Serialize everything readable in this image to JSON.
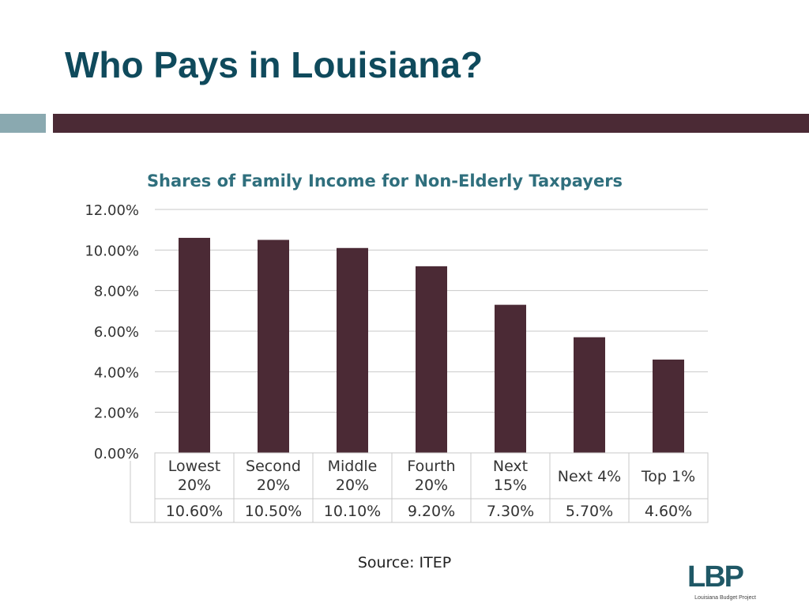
{
  "slide": {
    "title": "Who Pays in Louisiana?",
    "source": "Source: ITEP"
  },
  "logo": {
    "text": "LBP",
    "caption": "Louisiana Budget Project"
  },
  "colors": {
    "title": "#0f4a5c",
    "accent_light": "#8aa9b0",
    "accent_dark": "#4b2a35",
    "bar": "#4b2a35",
    "chart_title": "#2f6f7d",
    "grid": "#c8c8c8",
    "axis_text": "#333333"
  },
  "chart_data": {
    "type": "bar",
    "title": "Shares of Family Income for Non-Elderly Taxpayers",
    "categories": [
      [
        "Lowest",
        "20%"
      ],
      [
        "Second",
        "20%"
      ],
      [
        "Middle",
        "20%"
      ],
      [
        "Fourth",
        "20%"
      ],
      [
        "Next",
        "15%"
      ],
      [
        "Next 4%"
      ],
      [
        "Top 1%"
      ]
    ],
    "values": [
      10.6,
      10.5,
      10.1,
      9.2,
      7.3,
      5.7,
      4.6
    ],
    "data_labels": [
      "10.60%",
      "10.50%",
      "10.10%",
      "9.20%",
      "7.30%",
      "5.70%",
      "4.60%"
    ],
    "ylim": [
      0,
      12
    ],
    "yticks": [
      0,
      2,
      4,
      6,
      8,
      10,
      12
    ],
    "ytick_labels": [
      "0.00%",
      "2.00%",
      "4.00%",
      "6.00%",
      "8.00%",
      "10.00%",
      "12.00%"
    ],
    "grid": true,
    "data_table": true,
    "legend": "none"
  }
}
